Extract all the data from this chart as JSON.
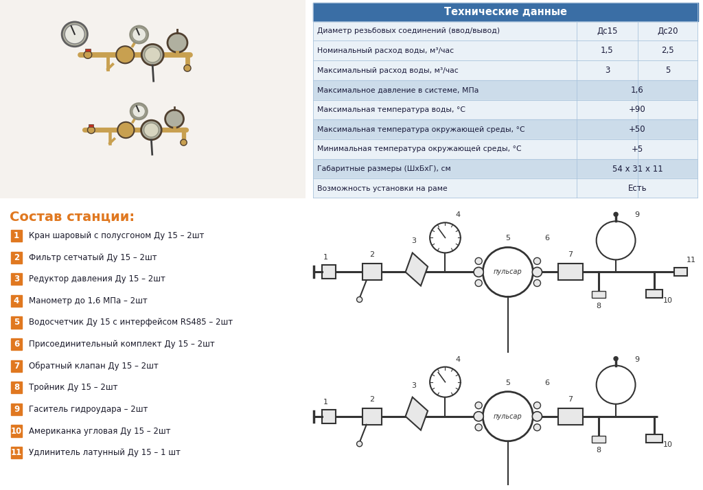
{
  "bg_color": "#ffffff",
  "table_header_bg": "#3a6ea5",
  "table_header_text": "#ffffff",
  "table_row_light": "#ccdcea",
  "table_row_white": "#eaf1f7",
  "table_border": "#aac4dc",
  "table_title": "Технические данные",
  "col1_label": "Дс15",
  "col2_label": "Дс20",
  "table_rows": [
    {
      "param": "Диаметр резьбовых соединений (ввод/вывод)",
      "val1": "Дс15",
      "val2": "Дс20",
      "merged": false,
      "light": false
    },
    {
      "param": "Номинальный расход воды, м³/час",
      "val1": "1,5",
      "val2": "2,5",
      "merged": false,
      "light": false
    },
    {
      "param": "Максимальный расход воды, м³/час",
      "val1": "3",
      "val2": "5",
      "merged": false,
      "light": false
    },
    {
      "param": "Максимальное давление в системе, МПа",
      "val_merged": "1,6",
      "merged": true,
      "light": true
    },
    {
      "param": "Максимальная температура воды, °С",
      "val_merged": "+90",
      "merged": true,
      "light": false
    },
    {
      "param": "Максимальная температура окружающей среды, °С",
      "val_merged": "+50",
      "merged": true,
      "light": true
    },
    {
      "param": "Минимальная температура окружающей среды, °С",
      "val_merged": "+5",
      "merged": true,
      "light": false
    },
    {
      "param": "Габаритные размеры (ШхБхГ), см",
      "val_merged": "54 x 31 x 11",
      "merged": true,
      "light": true
    },
    {
      "param": "Возможность установки на раме",
      "val_merged": "Есть",
      "merged": true,
      "light": false
    }
  ],
  "section_title": "Состав станции:",
  "section_title_color": "#e07820",
  "items": [
    {
      "num": "1",
      "text": "Кран шаровый с полусгоном Ду 15 – 2шт",
      "color": "#e07820"
    },
    {
      "num": "2",
      "text": "Фильтр сетчатый Ду 15 – 2шт",
      "color": "#e07820"
    },
    {
      "num": "3",
      "text": "Редуктор давления Ду 15 – 2шт",
      "color": "#e07820"
    },
    {
      "num": "4",
      "text": "Манометр до 1,6 МПа – 2шт",
      "color": "#e07820"
    },
    {
      "num": "5",
      "text": "Водосчетчик Ду 15 с интерфейсом RS485 – 2шт",
      "color": "#e07820"
    },
    {
      "num": "6",
      "text": "Присоединительный комплект Ду 15 – 2шт",
      "color": "#e07820"
    },
    {
      "num": "7",
      "text": "Обратный клапан Ду 15 – 2шт",
      "color": "#e07820"
    },
    {
      "num": "8",
      "text": "Тройник Ду 15 – 2шт",
      "color": "#e07820"
    },
    {
      "num": "9",
      "text": "Гаситель гидроудара – 2шт",
      "color": "#e07820"
    },
    {
      "num": "10",
      "text": "Американка угловая Ду 15 – 2шт",
      "color": "#e07820"
    },
    {
      "num": "11",
      "text": "Удлинитель латунный Ду 15 – 1 шт",
      "color": "#e07820"
    }
  ],
  "photo_bg": "#f5f2ee",
  "diag_pipe_color": "#333333",
  "diag_fill": "#e8e8e8",
  "diag_white": "#ffffff"
}
